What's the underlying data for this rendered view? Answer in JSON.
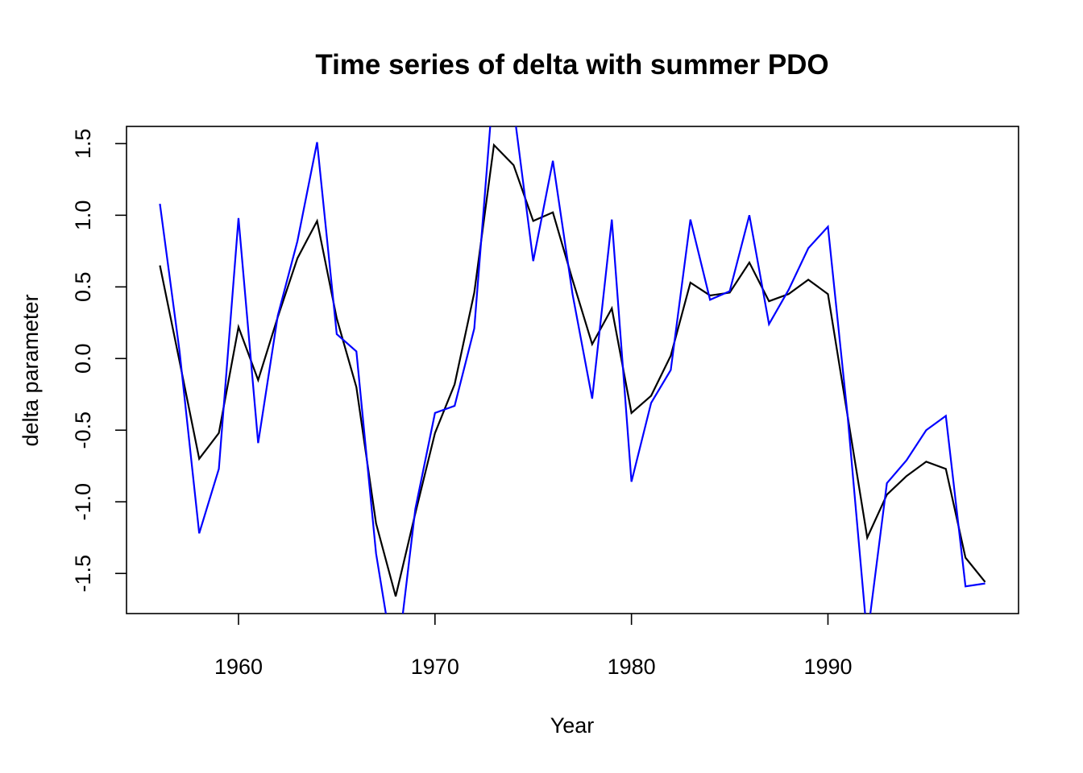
{
  "chart_data": {
    "type": "line",
    "title": "Time series of delta with summer PDO",
    "xlabel": "Year",
    "ylabel": "delta parameter",
    "xlim": [
      1954.3,
      1999.7
    ],
    "ylim": [
      -1.78,
      1.62
    ],
    "x_ticks": [
      1960,
      1970,
      1980,
      1990
    ],
    "x_tick_labels": [
      "1960",
      "1970",
      "1980",
      "1990"
    ],
    "y_ticks": [
      -1.5,
      -1.0,
      -0.5,
      0.0,
      0.5,
      1.0,
      1.5
    ],
    "y_tick_labels": [
      "-1.5",
      "-1.0",
      "-0.5",
      "0.0",
      "0.5",
      "1.0",
      "1.5"
    ],
    "grid": false,
    "legend": "none",
    "x": [
      1956,
      1957,
      1958,
      1959,
      1960,
      1961,
      1962,
      1963,
      1964,
      1965,
      1966,
      1967,
      1968,
      1969,
      1970,
      1971,
      1972,
      1973,
      1974,
      1975,
      1976,
      1977,
      1978,
      1979,
      1980,
      1981,
      1982,
      1983,
      1984,
      1985,
      1986,
      1987,
      1988,
      1989,
      1990,
      1991,
      1992,
      1993,
      1994,
      1995,
      1996,
      1997,
      1998
    ],
    "series": [
      {
        "color": "#000000",
        "values": [
          0.65,
          -0.02,
          -0.7,
          -0.52,
          0.22,
          -0.15,
          0.29,
          0.7,
          0.96,
          0.28,
          -0.2,
          -1.15,
          -1.66,
          -1.08,
          -0.52,
          -0.18,
          0.46,
          1.49,
          1.35,
          0.96,
          1.02,
          0.55,
          0.1,
          0.35,
          -0.38,
          -0.26,
          0.02,
          0.53,
          0.44,
          0.46,
          0.67,
          0.4,
          0.45,
          0.55,
          0.45,
          -0.4,
          -1.25,
          -0.95,
          -0.82,
          -0.72,
          -0.77,
          -1.39,
          -1.56
        ]
      },
      {
        "color": "#0000ff",
        "values": [
          1.08,
          0.05,
          -1.22,
          -0.77,
          0.98,
          -0.59,
          0.3,
          0.82,
          1.51,
          0.17,
          0.05,
          -1.36,
          -2.2,
          -1.05,
          -0.38,
          -0.33,
          0.21,
          1.95,
          1.75,
          0.68,
          1.38,
          0.45,
          -0.28,
          0.97,
          -0.86,
          -0.31,
          -0.08,
          0.97,
          0.41,
          0.47,
          1.0,
          0.24,
          0.48,
          0.77,
          0.92,
          -0.4,
          -1.95,
          -0.87,
          -0.71,
          -0.5,
          -0.4,
          -1.59,
          -1.57
        ]
      }
    ]
  }
}
